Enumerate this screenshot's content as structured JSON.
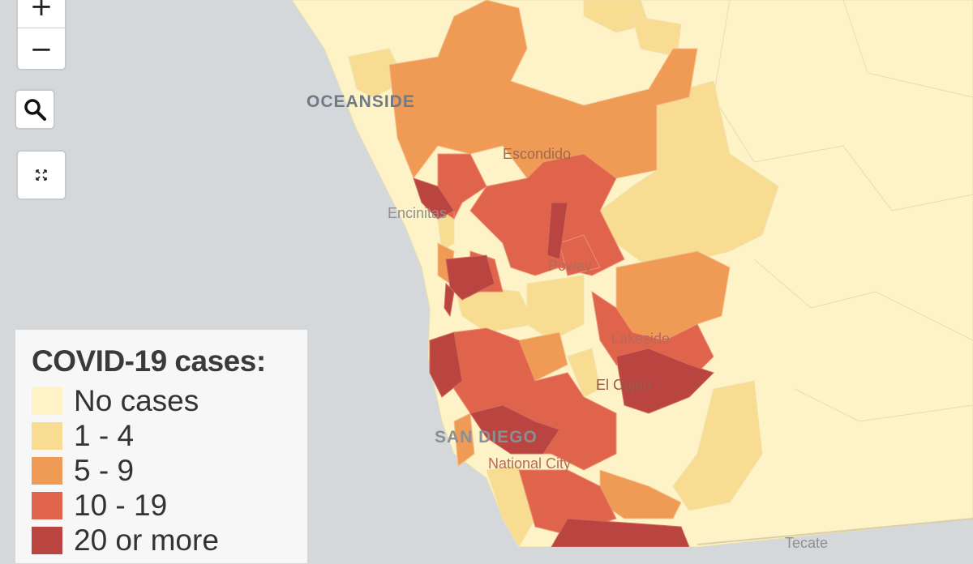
{
  "map": {
    "labels": {
      "oceanside": "OCEANSIDE",
      "escondido": "Escondido",
      "encinitas": "Encinitas",
      "poway": "Poway",
      "lakeside": "Lakeside",
      "el_cajon": "El Cajon",
      "san_diego": "SAN DIEGO",
      "national_city": "National City",
      "tecate": "Tecate"
    },
    "colors": {
      "water": "#d5d8da",
      "no_cases": "#fdf3c7",
      "c1_4": "#f7dc91",
      "c5_9": "#ef9a55",
      "c10_19": "#e0644b",
      "c20_plus": "#b94440"
    }
  },
  "controls": {
    "zoom_in": "+",
    "zoom_out": "−",
    "search_icon": "search-icon",
    "fit_icon": "fit-bounds-icon"
  },
  "legend": {
    "title": "COVID-19 cases:",
    "items": [
      {
        "label": "No cases",
        "color": "#fdf3c7"
      },
      {
        "label": "1 - 4",
        "color": "#f7dc91"
      },
      {
        "label": "5 - 9",
        "color": "#ef9a55"
      },
      {
        "label": "10 - 19",
        "color": "#e0644b"
      },
      {
        "label": "20 or more",
        "color": "#b94440"
      }
    ]
  }
}
